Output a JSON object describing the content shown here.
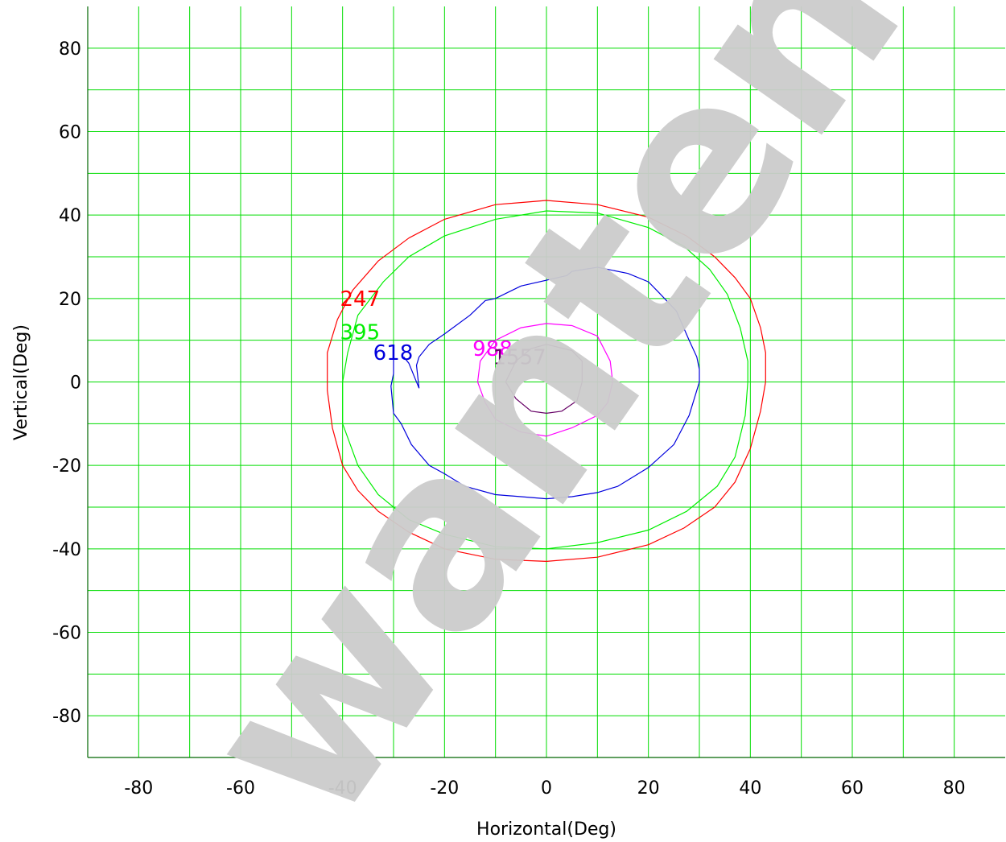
{
  "chart_data": {
    "type": "contour",
    "xlabel": "Horizontal(Deg)",
    "ylabel": "Vertical(Deg)",
    "xlim": [
      -90,
      90
    ],
    "ylim": [
      -90,
      90
    ],
    "x_ticks": [
      -80,
      -60,
      -40,
      -20,
      0,
      20,
      40,
      60,
      80
    ],
    "y_ticks": [
      80,
      60,
      40,
      20,
      0,
      -20,
      -40,
      -60,
      -80
    ],
    "grid": true,
    "grid_step": 10,
    "grid_color": "#00dd00",
    "series": [
      {
        "name": "247",
        "color": "#ff0000",
        "label_at": [
          -40.5,
          20
        ],
        "points": [
          [
            0,
            43.5
          ],
          [
            10,
            42.5
          ],
          [
            20,
            39.5
          ],
          [
            27.5,
            35
          ],
          [
            33,
            30
          ],
          [
            37,
            25
          ],
          [
            40,
            20
          ],
          [
            42,
            13
          ],
          [
            43,
            7
          ],
          [
            43,
            0
          ],
          [
            42,
            -7
          ],
          [
            40,
            -16
          ],
          [
            37,
            -24
          ],
          [
            33,
            -30
          ],
          [
            27,
            -35
          ],
          [
            20,
            -39
          ],
          [
            10,
            -42
          ],
          [
            0,
            -43
          ],
          [
            -10,
            -42.5
          ],
          [
            -20,
            -40
          ],
          [
            -27,
            -36
          ],
          [
            -33,
            -31
          ],
          [
            -37,
            -26
          ],
          [
            -40,
            -20
          ],
          [
            -42,
            -11
          ],
          [
            -43,
            -2
          ],
          [
            -43,
            7
          ],
          [
            -41,
            15
          ],
          [
            -38,
            22
          ],
          [
            -33,
            29
          ],
          [
            -27,
            34.5
          ],
          [
            -20,
            39
          ],
          [
            -10,
            42.5
          ],
          [
            0,
            43.5
          ]
        ]
      },
      {
        "name": "395",
        "color": "#00ee00",
        "label_at": [
          -40.5,
          12
        ],
        "points": [
          [
            0,
            41
          ],
          [
            10,
            40.5
          ],
          [
            20,
            37
          ],
          [
            27,
            32.5
          ],
          [
            32,
            27
          ],
          [
            35.5,
            21
          ],
          [
            38,
            13
          ],
          [
            39.5,
            5
          ],
          [
            39.5,
            0
          ],
          [
            39,
            -8
          ],
          [
            37,
            -18
          ],
          [
            33.5,
            -25
          ],
          [
            27.5,
            -31
          ],
          [
            20,
            -35.5
          ],
          [
            10,
            -38.5
          ],
          [
            0,
            -40
          ],
          [
            -10,
            -39.5
          ],
          [
            -20,
            -36.5
          ],
          [
            -27,
            -33
          ],
          [
            -33,
            -27
          ],
          [
            -37,
            -20
          ],
          [
            -40,
            -10
          ],
          [
            -40,
            0
          ],
          [
            -39,
            7
          ],
          [
            -37,
            16
          ],
          [
            -32,
            24
          ],
          [
            -27,
            30
          ],
          [
            -20,
            35
          ],
          [
            -10,
            39
          ],
          [
            0,
            41
          ]
        ]
      },
      {
        "name": "618",
        "color": "#0000dd",
        "label_at": [
          -34,
          7
        ],
        "points": [
          [
            -30,
            7
          ],
          [
            -30,
            2
          ],
          [
            -30.5,
            -1
          ],
          [
            -30,
            -7.5
          ],
          [
            -28.5,
            -10
          ],
          [
            -26.5,
            -15
          ],
          [
            -23,
            -20
          ],
          [
            -20,
            -22
          ],
          [
            -16,
            -25
          ],
          [
            -10,
            -27
          ],
          [
            -5,
            -27.5
          ],
          [
            0,
            -28
          ],
          [
            5,
            -27.5
          ],
          [
            10,
            -26.5
          ],
          [
            14,
            -25
          ],
          [
            20,
            -20.5
          ],
          [
            25,
            -15
          ],
          [
            28,
            -8
          ],
          [
            30,
            0
          ],
          [
            30,
            3
          ],
          [
            29.5,
            6
          ],
          [
            28,
            10
          ],
          [
            25.5,
            17
          ],
          [
            22,
            21.5
          ],
          [
            20,
            24
          ],
          [
            16,
            26
          ],
          [
            10,
            27.5
          ],
          [
            5,
            26.5
          ],
          [
            4,
            25.5
          ],
          [
            -5,
            23
          ],
          [
            -10,
            20
          ],
          [
            -12,
            19.5
          ],
          [
            -15,
            16
          ],
          [
            -20,
            11.5
          ],
          [
            -23,
            9
          ],
          [
            -25,
            6
          ],
          [
            -25.5,
            4
          ],
          [
            -25,
            -1.5
          ],
          [
            -27,
            4.5
          ],
          [
            -28,
            6
          ]
        ]
      },
      {
        "name": "988",
        "color": "#ff00ff",
        "label_at": [
          -14.5,
          8
        ],
        "points": [
          [
            0,
            14
          ],
          [
            5,
            13.5
          ],
          [
            10,
            11
          ],
          [
            12.5,
            5
          ],
          [
            13,
            0
          ],
          [
            12,
            -5
          ],
          [
            10,
            -8
          ],
          [
            5,
            -11
          ],
          [
            0,
            -13
          ],
          [
            -5,
            -12
          ],
          [
            -10,
            -9
          ],
          [
            -12,
            -5
          ],
          [
            -13.5,
            0
          ],
          [
            -13,
            5
          ],
          [
            -10,
            10
          ],
          [
            -5,
            13
          ],
          [
            0,
            14
          ]
        ]
      },
      {
        "name": "1557",
        "color": "#660066",
        "label_at": [
          -10.5,
          6
        ],
        "points": [
          [
            0,
            9
          ],
          [
            5,
            7.5
          ],
          [
            7,
            5
          ],
          [
            7,
            0
          ],
          [
            6,
            -4.5
          ],
          [
            3,
            -7
          ],
          [
            0,
            -7.5
          ],
          [
            -3,
            -7
          ],
          [
            -6,
            -4
          ],
          [
            -8,
            0
          ],
          [
            -6,
            5
          ],
          [
            -3,
            8
          ],
          [
            0,
            9
          ]
        ]
      }
    ]
  },
  "watermark": {
    "text": "wantenerg",
    "color": "#cccccc"
  }
}
